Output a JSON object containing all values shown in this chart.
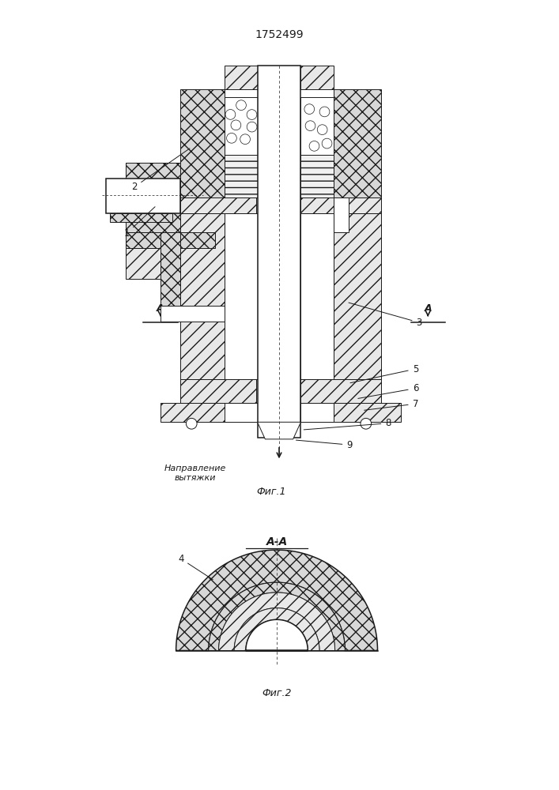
{
  "title": "1752499",
  "fig1_label": "Фиг.1",
  "fig2_label": "Фиг.2",
  "section_label": "А-А",
  "direction_text": "Направление\nвытяжки",
  "line_color": "#1a1a1a",
  "lw": 0.7,
  "lw2": 1.1,
  "cross_hatch_fc": "#d8d8d8",
  "diag_hatch_fc": "#e8e8e8",
  "white": "#ffffff"
}
